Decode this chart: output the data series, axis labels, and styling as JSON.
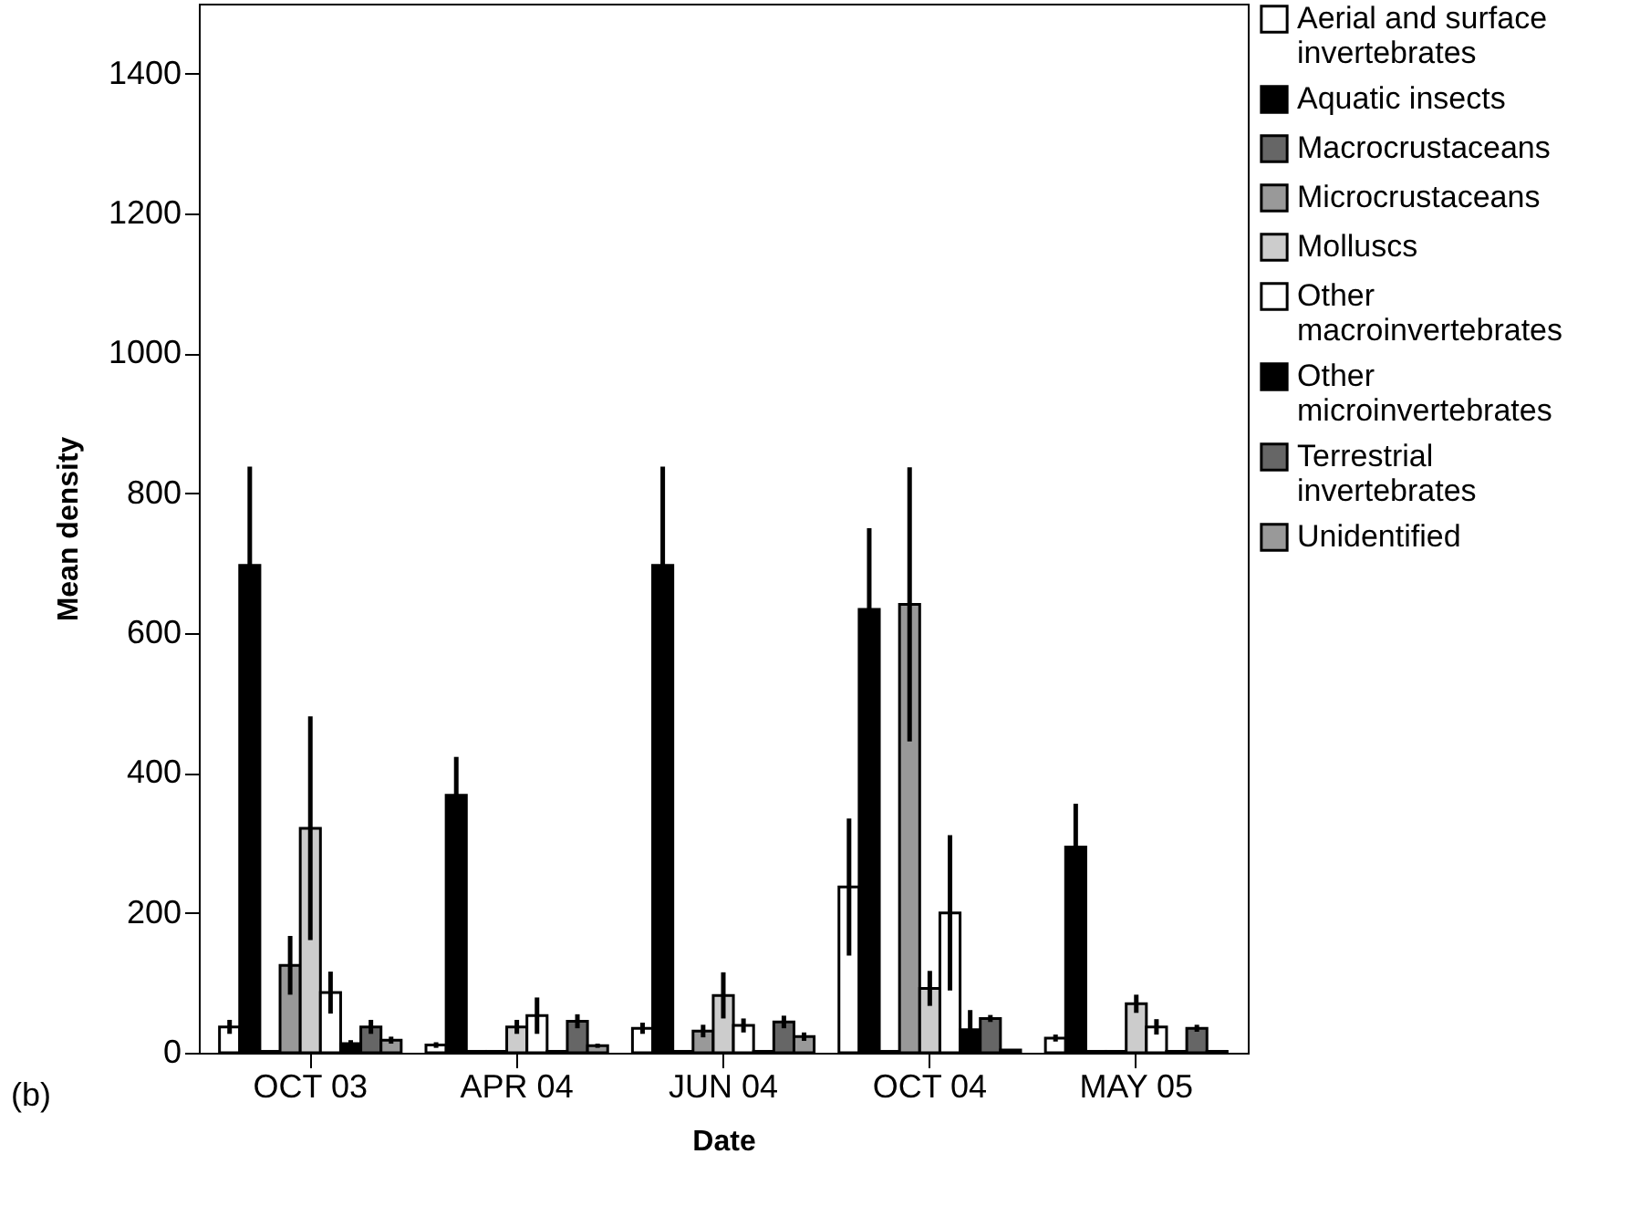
{
  "chart_data": {
    "type": "bar",
    "xlabel": "Date",
    "ylabel": "Mean density",
    "categories": [
      "OCT 03",
      "APR 04",
      "JUN 04",
      "OCT 04",
      "MAY 05"
    ],
    "series": [
      {
        "name": "Aerial and surface invertebrates",
        "color": "#ffffff",
        "values": [
          37,
          11,
          35,
          237,
          21
        ],
        "errors": [
          10,
          4,
          8,
          98,
          5
        ]
      },
      {
        "name": "Aquatic insects",
        "color": "#000000",
        "values": [
          697,
          368,
          697,
          634,
          294
        ],
        "errors": [
          141,
          55,
          141,
          116,
          62
        ]
      },
      {
        "name": "Macrocrustaceans",
        "color": "#666666",
        "values": [
          2,
          2,
          2,
          2,
          2
        ],
        "errors": [
          null,
          null,
          null,
          null,
          null
        ]
      },
      {
        "name": "Microcrustaceans",
        "color": "#999999",
        "values": [
          125,
          2,
          31,
          641,
          2
        ],
        "errors": [
          42,
          null,
          9,
          196,
          null
        ]
      },
      {
        "name": "Molluscs",
        "color": "#cccccc",
        "values": [
          321,
          37,
          82,
          92,
          70
        ],
        "errors": [
          160,
          10,
          33,
          25,
          13
        ]
      },
      {
        "name": "Other macroinvertebrates",
        "color": "#ffffff",
        "values": [
          86,
          53,
          39,
          200,
          37
        ],
        "errors": [
          30,
          26,
          10,
          111,
          11
        ]
      },
      {
        "name": "Other microinvertebrates",
        "color": "#000000",
        "values": [
          13,
          2,
          2,
          33,
          2
        ],
        "errors": [
          5,
          null,
          null,
          28,
          null
        ]
      },
      {
        "name": "Terrestrial invertebrates",
        "color": "#666666",
        "values": [
          37,
          45,
          44,
          49,
          35
        ],
        "errors": [
          10,
          10,
          9,
          5,
          5
        ]
      },
      {
        "name": "Unidentified",
        "color": "#999999",
        "values": [
          18,
          10,
          23,
          4,
          2
        ],
        "errors": [
          5,
          3,
          6,
          null,
          null
        ]
      }
    ],
    "ylim": [
      0,
      1500
    ],
    "yticks": [
      0,
      200,
      400,
      600,
      800,
      1000,
      1200,
      1400
    ],
    "legend": "right",
    "annotations": [
      "(b)"
    ]
  }
}
